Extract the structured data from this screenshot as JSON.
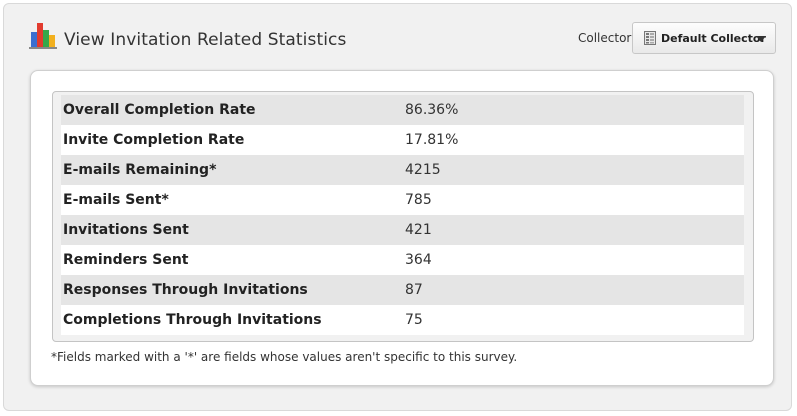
{
  "header": {
    "title": "View Invitation Related Statistics",
    "icon": "bar-chart-icon",
    "icon_colors": [
      "#3b6fd1",
      "#e23b2e",
      "#36a84a",
      "#f2b01e"
    ]
  },
  "collector": {
    "label": "Collector:",
    "selected": "Default Collector",
    "icon": "collector-icon"
  },
  "stats": {
    "rows": [
      {
        "label": "Overall Completion Rate",
        "value": "86.36%"
      },
      {
        "label": "Invite Completion Rate",
        "value": "17.81%"
      },
      {
        "label": "E-mails Remaining*",
        "value": "4215"
      },
      {
        "label": "E-mails Sent*",
        "value": "785"
      },
      {
        "label": "Invitations Sent",
        "value": "421"
      },
      {
        "label": "Reminders Sent",
        "value": "364"
      },
      {
        "label": "Responses Through Invitations",
        "value": "87"
      },
      {
        "label": "Completions Through Invitations",
        "value": "75"
      }
    ]
  },
  "footnote": "*Fields marked with a '*' are fields whose values aren't specific to this survey."
}
